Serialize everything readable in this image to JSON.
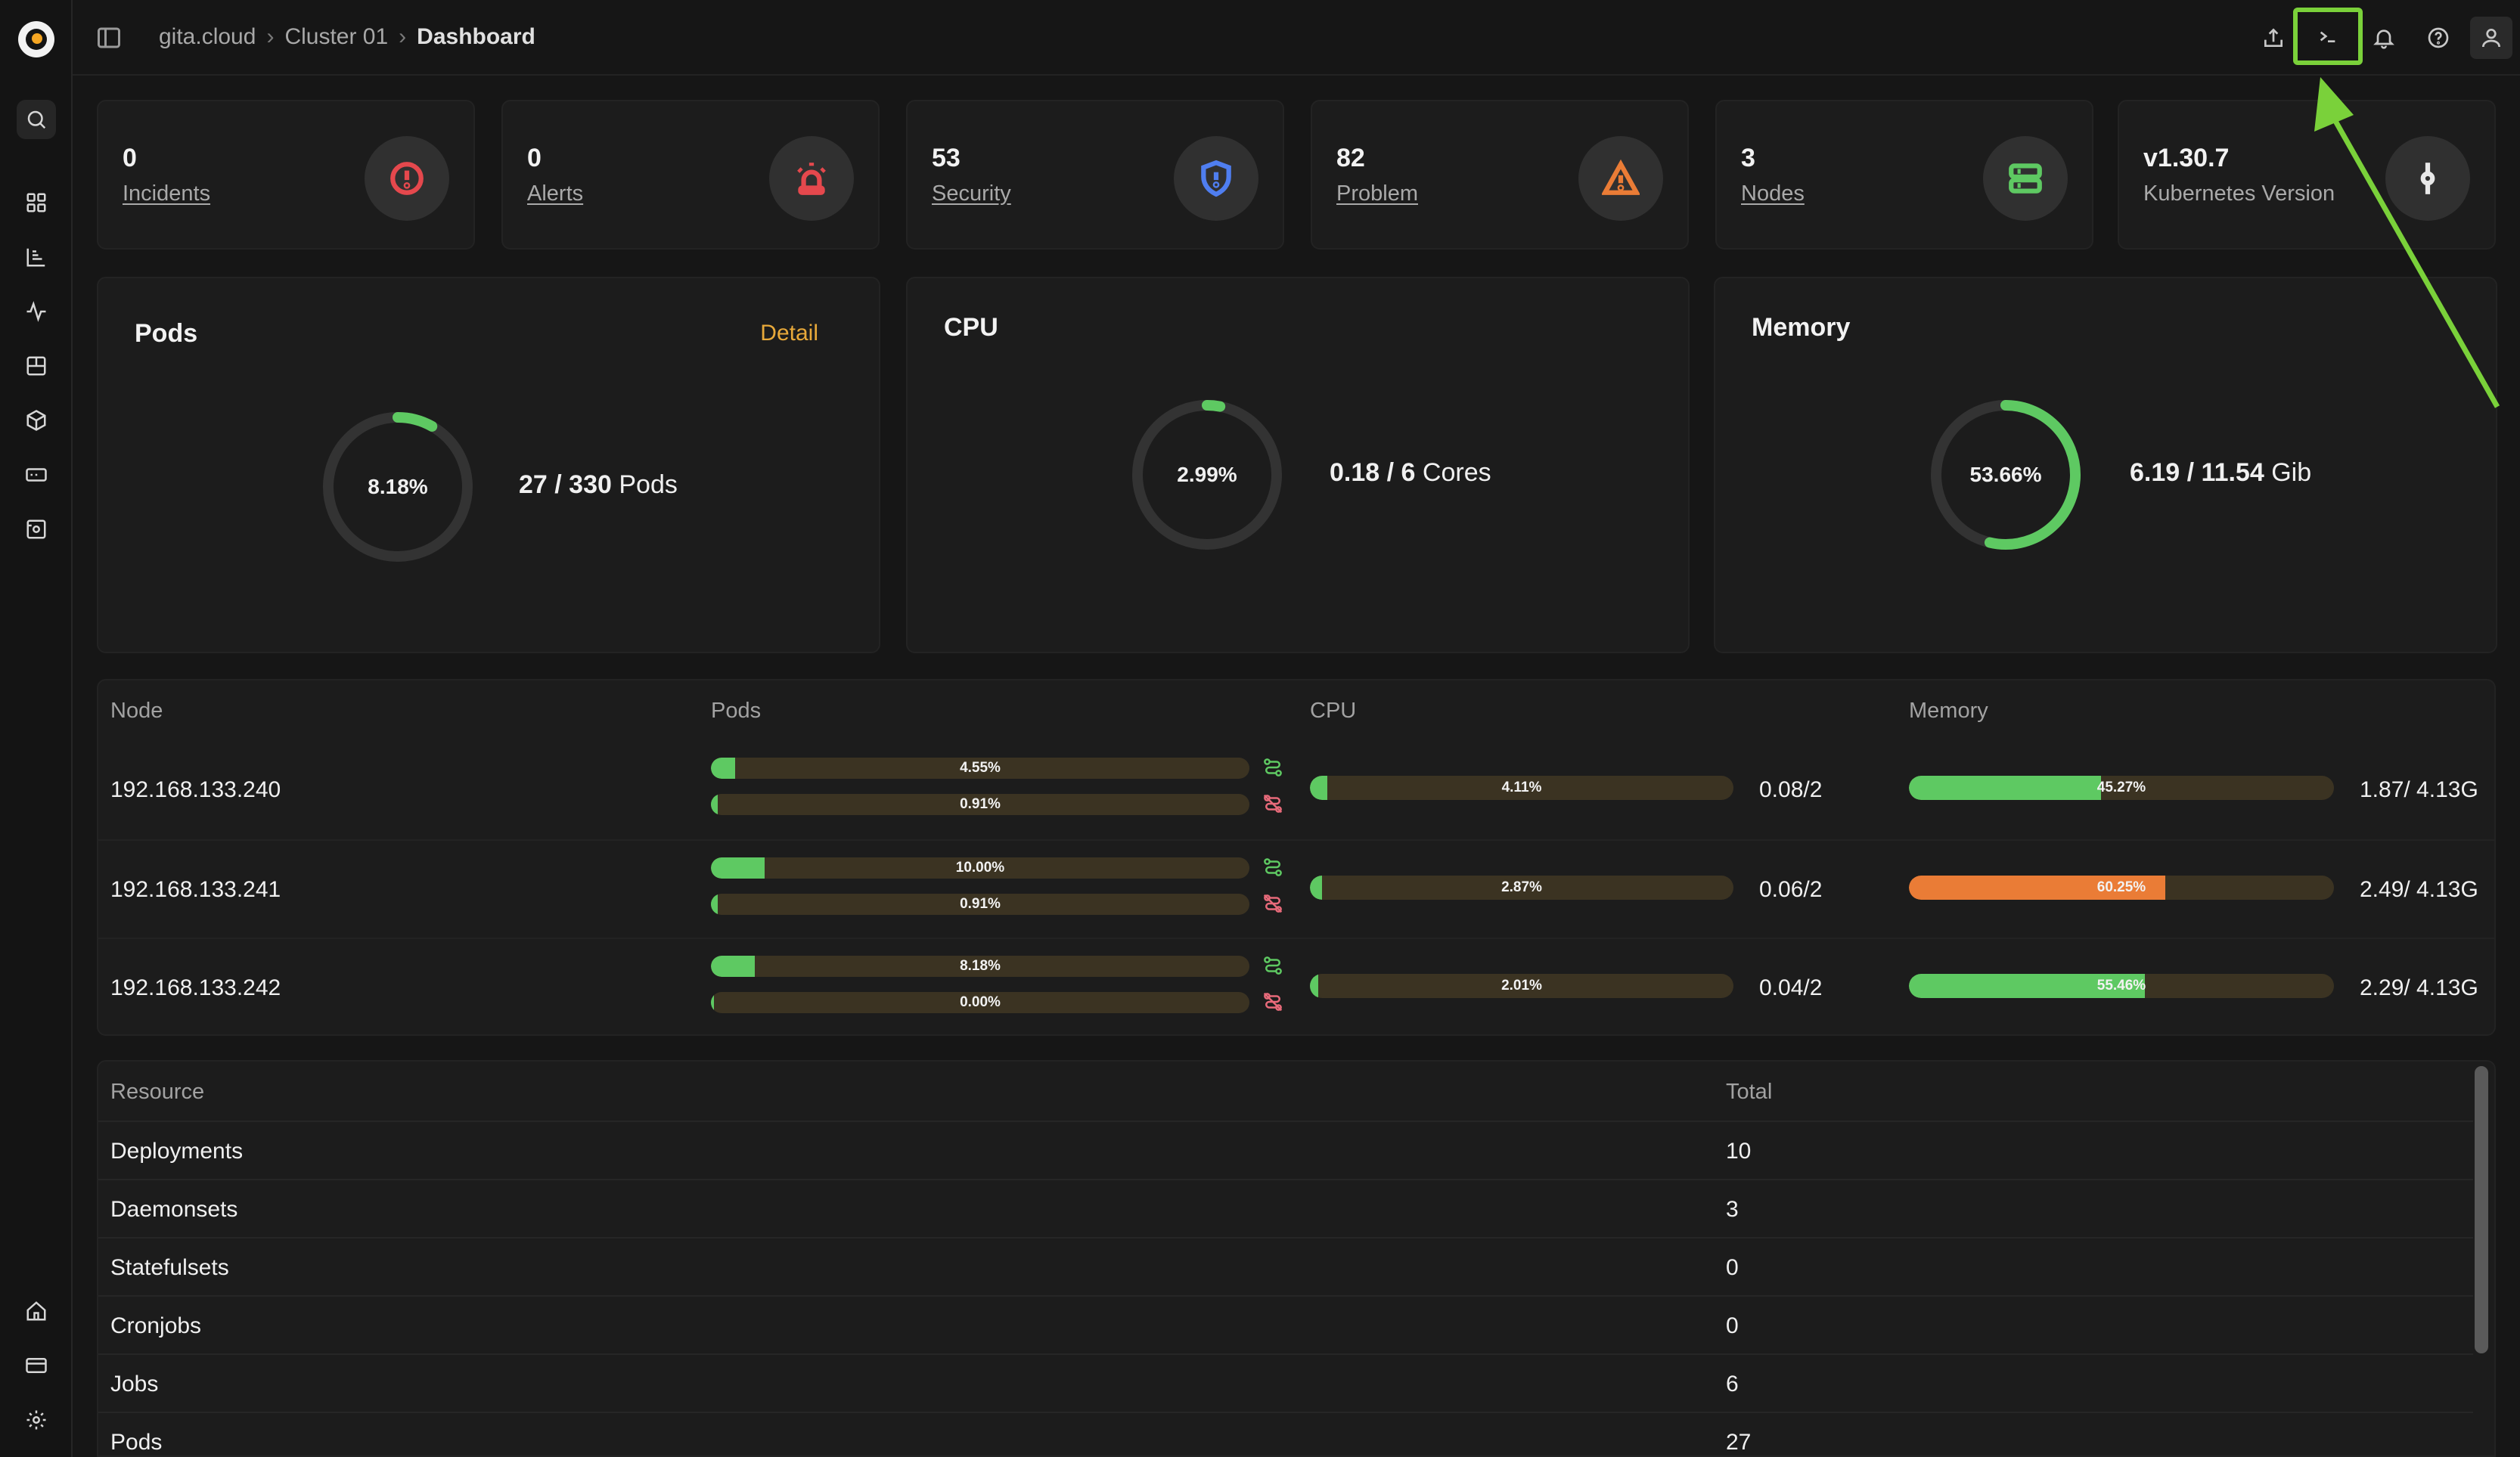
{
  "breadcrumb": {
    "root": "gita.cloud",
    "cluster": "Cluster 01",
    "current": "Dashboard"
  },
  "sidebar": {
    "icons": [
      "logo-icon",
      "search-icon",
      "grid-icon",
      "chart-icon",
      "activity-icon",
      "workload-icon",
      "cube-icon",
      "network-icon",
      "storage-icon",
      "home-icon",
      "card-icon",
      "gear-icon"
    ]
  },
  "top_actions": [
    "upload-icon",
    "terminal-icon",
    "bell-icon",
    "help-icon",
    "user-icon"
  ],
  "stats": [
    {
      "value": "0",
      "label": "Incidents",
      "icon": "alert-circle-icon",
      "color": "#e5484d"
    },
    {
      "value": "0",
      "label": "Alerts",
      "icon": "siren-icon",
      "color": "#e5484d"
    },
    {
      "value": "53",
      "label": "Security",
      "icon": "shield-icon",
      "color": "#4f7ef0"
    },
    {
      "value": "82",
      "label": "Problem",
      "icon": "warning-triangle-icon",
      "color": "#ea7c36"
    },
    {
      "value": "3",
      "label": "Nodes",
      "icon": "server-icon",
      "color": "#5ec962"
    },
    {
      "value": "v1.30.7",
      "label": "Kubernetes Version",
      "icon": "commit-icon",
      "color": "#e8e8e8"
    }
  ],
  "gauges": {
    "pods": {
      "title": "Pods",
      "detail": "Detail",
      "percent": "8.18%",
      "fraction": 0.0818,
      "used": "27",
      "total": "330",
      "unit": "Pods"
    },
    "cpu": {
      "title": "CPU",
      "percent": "2.99%",
      "fraction": 0.0299,
      "used": "0.18",
      "total": "6",
      "unit": "Cores"
    },
    "memory": {
      "title": "Memory",
      "percent": "53.66%",
      "fraction": 0.5366,
      "used": "6.19",
      "total": "11.54",
      "unit": "Gib"
    }
  },
  "node_table": {
    "headers": {
      "node": "Node",
      "pods": "Pods",
      "cpu": "CPU",
      "memory": "Memory"
    },
    "rows": [
      {
        "ip": "192.168.133.240",
        "pods_running": "4.55%",
        "pods_running_f": 0.0455,
        "pods_failed": "0.91%",
        "pods_failed_f": 0.0091,
        "cpu": "4.11%",
        "cpu_f": 0.0411,
        "cpu_val": "0.08/2",
        "mem": "45.27%",
        "mem_f": 0.4527,
        "mem_val": "1.87/ 4.13G",
        "mem_color": "#5ec962"
      },
      {
        "ip": "192.168.133.241",
        "pods_running": "10.00%",
        "pods_running_f": 0.1,
        "pods_failed": "0.91%",
        "pods_failed_f": 0.0091,
        "cpu": "2.87%",
        "cpu_f": 0.0287,
        "cpu_val": "0.06/2",
        "mem": "60.25%",
        "mem_f": 0.6025,
        "mem_val": "2.49/ 4.13G",
        "mem_color": "#ea7c36"
      },
      {
        "ip": "192.168.133.242",
        "pods_running": "8.18%",
        "pods_running_f": 0.0818,
        "pods_failed": "0.00%",
        "pods_failed_f": 0.0,
        "cpu": "2.01%",
        "cpu_f": 0.0201,
        "cpu_val": "0.04/2",
        "mem": "55.46%",
        "mem_f": 0.5546,
        "mem_val": "2.29/ 4.13G",
        "mem_color": "#5ec962"
      }
    ]
  },
  "resource_table": {
    "headers": {
      "resource": "Resource",
      "total": "Total"
    },
    "rows": [
      {
        "name": "Deployments",
        "total": "10"
      },
      {
        "name": "Daemonsets",
        "total": "3"
      },
      {
        "name": "Statefulsets",
        "total": "0"
      },
      {
        "name": "Cronjobs",
        "total": "0"
      },
      {
        "name": "Jobs",
        "total": "6"
      },
      {
        "name": "Pods",
        "total": "27"
      }
    ]
  }
}
